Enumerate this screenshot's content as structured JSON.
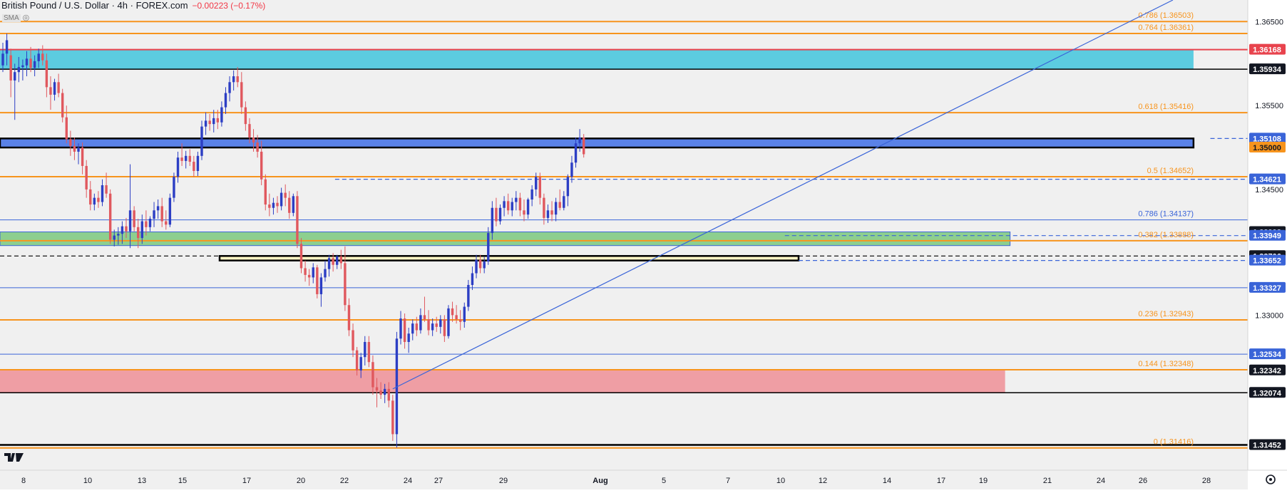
{
  "header": {
    "symbol": "British Pound / U.S. Dollar · 4h · FOREX.com",
    "change": "−0.00223 (−0.17%)",
    "sma_label": "SMA"
  },
  "colors": {
    "up": "#2c3ec4",
    "down": "#e0585e",
    "orange": "#f7941d",
    "blue_line": "#3a64d8",
    "black": "#000000",
    "red_line": "#e8434d",
    "cyan_zone": "#5ccce0",
    "blue_zone": "#5a82e8",
    "green_zone": "#8dcf8f",
    "red_zone": "#ef9ea4",
    "yellow_zone": "#fff6c4"
  },
  "chart_data": {
    "type": "candlestick",
    "title": "British Pound / U.S. Dollar · 4h · FOREX.com",
    "ylim": [
      1.3115,
      1.3676
    ],
    "x_ticks": [
      "8",
      "10",
      "13",
      "15",
      "17",
      "20",
      "22",
      "24",
      "27",
      "29",
      "Aug",
      "5",
      "7",
      "10",
      "12",
      "14",
      "17",
      "19",
      "21",
      "24",
      "26",
      "28"
    ],
    "price_labels": [
      {
        "text": "1.36168",
        "value": 1.36168,
        "style": "red"
      },
      {
        "text": "1.35934",
        "value": 1.35934,
        "style": "black"
      },
      {
        "text": "1.35108",
        "value": 1.35108,
        "style": "blue"
      },
      {
        "text": "1.35000",
        "value": 1.35,
        "style": "orange"
      },
      {
        "text": "1.34621",
        "value": 1.34621,
        "style": "blue"
      },
      {
        "text": "1.33993",
        "value": 1.33993,
        "style": "black"
      },
      {
        "text": "1.33949",
        "value": 1.33949,
        "style": "blue"
      },
      {
        "text": "1.33706",
        "value": 1.33706,
        "style": "black"
      },
      {
        "text": "1.33652",
        "value": 1.33652,
        "style": "blue"
      },
      {
        "text": "1.33327",
        "value": 1.33327,
        "style": "blue"
      },
      {
        "text": "1.32534",
        "value": 1.32534,
        "style": "blue"
      },
      {
        "text": "1.32342",
        "value": 1.32342,
        "style": "black"
      },
      {
        "text": "1.32074",
        "value": 1.32074,
        "style": "black"
      },
      {
        "text": "1.31452",
        "value": 1.31452,
        "style": "black"
      }
    ],
    "axis_ticks": [
      {
        "text": "1.36500",
        "value": 1.365
      },
      {
        "text": "1.35500",
        "value": 1.355
      },
      {
        "text": "1.34500",
        "value": 1.345
      },
      {
        "text": "1.33000",
        "value": 1.33
      }
    ],
    "fib_levels": [
      {
        "text": "0.786 (1.36503)",
        "value": 1.36503
      },
      {
        "text": "0.764 (1.36361)",
        "value": 1.36361
      },
      {
        "text": "0.618 (1.35416)",
        "value": 1.35416
      },
      {
        "text": "0.5 (1.34652)",
        "value": 1.34652
      },
      {
        "text": "0.786 (1.34137)",
        "value": 1.34137,
        "color": "blue"
      },
      {
        "text": "0.382 (1.33888)",
        "value": 1.33888
      },
      {
        "text": "0.236 (1.32943)",
        "value": 1.32943
      },
      {
        "text": "0.144 (1.32348)",
        "value": 1.32348
      },
      {
        "text": "0 (1.31416)",
        "value": 1.31416
      }
    ],
    "zones": [
      {
        "name": "cyan",
        "y1": 1.36168,
        "y2": 1.35934,
        "x_end": 0.9565
      },
      {
        "name": "blue",
        "y1": 1.35108,
        "y2": 1.35,
        "x_end": 0.9565
      },
      {
        "name": "green",
        "y1": 1.33993,
        "y2": 1.3383,
        "x_end": 0.8095
      },
      {
        "name": "yellow",
        "y1": 1.33706,
        "y2": 1.33652,
        "x_start": 0.176,
        "x_end": 0.64
      },
      {
        "name": "red",
        "y1": 1.32342,
        "y2": 1.32074,
        "x_end": 0.8055
      }
    ],
    "candles": [
      [
        1.3598,
        1.3625,
        1.359,
        1.3612
      ],
      [
        1.3612,
        1.3636,
        1.3598,
        1.3628
      ],
      [
        1.361,
        1.3618,
        1.356,
        1.358
      ],
      [
        1.358,
        1.36,
        1.3533,
        1.359
      ],
      [
        1.359,
        1.3608,
        1.3578,
        1.3596
      ],
      [
        1.3596,
        1.3605,
        1.358,
        1.3598
      ],
      [
        1.3598,
        1.3615,
        1.3585,
        1.3606
      ],
      [
        1.3606,
        1.362,
        1.359,
        1.3595
      ],
      [
        1.3595,
        1.361,
        1.3585,
        1.3603
      ],
      [
        1.3603,
        1.3618,
        1.3595,
        1.3612
      ],
      [
        1.3612,
        1.3622,
        1.3598,
        1.3604
      ],
      [
        1.3604,
        1.3612,
        1.356,
        1.3572
      ],
      [
        1.3572,
        1.3585,
        1.3545,
        1.3563
      ],
      [
        1.3563,
        1.3582,
        1.3556,
        1.3578
      ],
      [
        1.3578,
        1.3588,
        1.356,
        1.3565
      ],
      [
        1.3565,
        1.357,
        1.353,
        1.3536
      ],
      [
        1.3536,
        1.355,
        1.3505,
        1.351
      ],
      [
        1.351,
        1.352,
        1.349,
        1.3502
      ],
      [
        1.3502,
        1.3512,
        1.3485,
        1.3495
      ],
      [
        1.3495,
        1.3505,
        1.348,
        1.35
      ],
      [
        1.35,
        1.3506,
        1.3468,
        1.3478
      ],
      [
        1.3478,
        1.3485,
        1.344,
        1.345
      ],
      [
        1.345,
        1.346,
        1.3425,
        1.3432
      ],
      [
        1.3432,
        1.3445,
        1.3425,
        1.344
      ],
      [
        1.344,
        1.3448,
        1.3428,
        1.3435
      ],
      [
        1.3435,
        1.3462,
        1.343,
        1.3455
      ],
      [
        1.3455,
        1.347,
        1.344,
        1.3445
      ],
      [
        1.3445,
        1.345,
        1.3385,
        1.339
      ],
      [
        1.339,
        1.3402,
        1.3382,
        1.3395
      ],
      [
        1.3395,
        1.3405,
        1.3384,
        1.3397
      ],
      [
        1.3397,
        1.3412,
        1.3385,
        1.3406
      ],
      [
        1.3406,
        1.3416,
        1.3392,
        1.34
      ],
      [
        1.34,
        1.348,
        1.338,
        1.3425
      ],
      [
        1.3425,
        1.343,
        1.34,
        1.3405
      ],
      [
        1.3405,
        1.3415,
        1.338,
        1.3392
      ],
      [
        1.3392,
        1.342,
        1.3385,
        1.3412
      ],
      [
        1.3412,
        1.3425,
        1.3395,
        1.3405
      ],
      [
        1.3405,
        1.3418,
        1.34,
        1.3415
      ],
      [
        1.3415,
        1.3435,
        1.3405,
        1.3425
      ],
      [
        1.3425,
        1.3438,
        1.3415,
        1.343
      ],
      [
        1.343,
        1.344,
        1.3405,
        1.3412
      ],
      [
        1.3412,
        1.3425,
        1.3402,
        1.3408
      ],
      [
        1.3408,
        1.3445,
        1.3405,
        1.344
      ],
      [
        1.344,
        1.347,
        1.3435,
        1.3465
      ],
      [
        1.3465,
        1.3495,
        1.3458,
        1.3488
      ],
      [
        1.3488,
        1.3505,
        1.3478,
        1.3484
      ],
      [
        1.3484,
        1.3496,
        1.3475,
        1.349
      ],
      [
        1.349,
        1.3498,
        1.3478,
        1.3483
      ],
      [
        1.3483,
        1.349,
        1.3465,
        1.3472
      ],
      [
        1.3472,
        1.3495,
        1.3466,
        1.349
      ],
      [
        1.349,
        1.3532,
        1.3485,
        1.3525
      ],
      [
        1.3525,
        1.3542,
        1.3515,
        1.3532
      ],
      [
        1.3532,
        1.354,
        1.352,
        1.3528
      ],
      [
        1.3528,
        1.3545,
        1.3518,
        1.3535
      ],
      [
        1.3535,
        1.3545,
        1.3522,
        1.353
      ],
      [
        1.353,
        1.3555,
        1.3525,
        1.3548
      ],
      [
        1.3548,
        1.3572,
        1.354,
        1.3565
      ],
      [
        1.3565,
        1.3585,
        1.3555,
        1.3578
      ],
      [
        1.3578,
        1.3592,
        1.3568,
        1.3585
      ],
      [
        1.3585,
        1.3596,
        1.3572,
        1.3578
      ],
      [
        1.3578,
        1.359,
        1.354,
        1.3548
      ],
      [
        1.3548,
        1.3555,
        1.352,
        1.3528
      ],
      [
        1.3528,
        1.3535,
        1.3505,
        1.3512
      ],
      [
        1.3512,
        1.3522,
        1.3495,
        1.3506
      ],
      [
        1.3506,
        1.3515,
        1.3488,
        1.3495
      ],
      [
        1.3495,
        1.3508,
        1.3455,
        1.3462
      ],
      [
        1.3462,
        1.3468,
        1.3425,
        1.3432
      ],
      [
        1.3432,
        1.3445,
        1.3418,
        1.3428
      ],
      [
        1.3428,
        1.344,
        1.342,
        1.3434
      ],
      [
        1.3434,
        1.3442,
        1.3422,
        1.343
      ],
      [
        1.343,
        1.3452,
        1.3425,
        1.3446
      ],
      [
        1.3446,
        1.3456,
        1.343,
        1.344
      ],
      [
        1.344,
        1.3448,
        1.3415,
        1.3422
      ],
      [
        1.3422,
        1.3445,
        1.3418,
        1.3442
      ],
      [
        1.3442,
        1.3448,
        1.338,
        1.3385
      ],
      [
        1.3385,
        1.3392,
        1.335,
        1.3356
      ],
      [
        1.3356,
        1.3365,
        1.334,
        1.3348
      ],
      [
        1.3348,
        1.3355,
        1.3335,
        1.3345
      ],
      [
        1.3345,
        1.3362,
        1.3338,
        1.3357
      ],
      [
        1.3357,
        1.336,
        1.332,
        1.3325
      ],
      [
        1.3325,
        1.335,
        1.331,
        1.3345
      ],
      [
        1.3345,
        1.3365,
        1.334,
        1.3355
      ],
      [
        1.3355,
        1.3372,
        1.3346,
        1.3368
      ],
      [
        1.3368,
        1.3374,
        1.3352,
        1.336
      ],
      [
        1.336,
        1.3372,
        1.3355,
        1.337
      ],
      [
        1.337,
        1.3378,
        1.3355,
        1.3362
      ],
      [
        1.3362,
        1.3382,
        1.3305,
        1.3312
      ],
      [
        1.3312,
        1.332,
        1.3275,
        1.3282
      ],
      [
        1.3282,
        1.329,
        1.325,
        1.3258
      ],
      [
        1.3258,
        1.3262,
        1.3228,
        1.3234
      ],
      [
        1.3234,
        1.3255,
        1.3225,
        1.325
      ],
      [
        1.325,
        1.3275,
        1.324,
        1.3268
      ],
      [
        1.3268,
        1.3275,
        1.3238,
        1.3244
      ],
      [
        1.3244,
        1.3252,
        1.3205,
        1.3214
      ],
      [
        1.3214,
        1.3225,
        1.319,
        1.321
      ],
      [
        1.321,
        1.322,
        1.32,
        1.3205
      ],
      [
        1.3205,
        1.3218,
        1.3195,
        1.3212
      ],
      [
        1.3212,
        1.322,
        1.319,
        1.3198
      ],
      [
        1.3198,
        1.3205,
        1.315,
        1.3158
      ],
      [
        1.3158,
        1.328,
        1.3142,
        1.3272
      ],
      [
        1.3272,
        1.3305,
        1.3265,
        1.3296
      ],
      [
        1.3296,
        1.3302,
        1.326,
        1.3268
      ],
      [
        1.3268,
        1.3285,
        1.3255,
        1.3278
      ],
      [
        1.3278,
        1.3295,
        1.327,
        1.329
      ],
      [
        1.329,
        1.3298,
        1.3275,
        1.3282
      ],
      [
        1.3282,
        1.3308,
        1.3278,
        1.33
      ],
      [
        1.33,
        1.3322,
        1.3292,
        1.3295
      ],
      [
        1.3295,
        1.3306,
        1.3276,
        1.3282
      ],
      [
        1.3282,
        1.3296,
        1.3275,
        1.329
      ],
      [
        1.329,
        1.3298,
        1.328,
        1.3286
      ],
      [
        1.3286,
        1.33,
        1.3278,
        1.3295
      ],
      [
        1.3295,
        1.33,
        1.3268,
        1.3275
      ],
      [
        1.3275,
        1.3312,
        1.3272,
        1.3308
      ],
      [
        1.3308,
        1.3316,
        1.3292,
        1.33
      ],
      [
        1.33,
        1.3312,
        1.329,
        1.3295
      ],
      [
        1.3295,
        1.3306,
        1.3282,
        1.3292
      ],
      [
        1.3292,
        1.3315,
        1.3285,
        1.331
      ],
      [
        1.331,
        1.3342,
        1.3305,
        1.3336
      ],
      [
        1.3336,
        1.3358,
        1.333,
        1.335
      ],
      [
        1.335,
        1.3372,
        1.3344,
        1.3366
      ],
      [
        1.3366,
        1.3372,
        1.335,
        1.3356
      ],
      [
        1.3356,
        1.337,
        1.335,
        1.3364
      ],
      [
        1.3364,
        1.3405,
        1.336,
        1.3398
      ],
      [
        1.3398,
        1.3436,
        1.339,
        1.3428
      ],
      [
        1.3428,
        1.344,
        1.3406,
        1.3412
      ],
      [
        1.3412,
        1.3432,
        1.3408,
        1.3428
      ],
      [
        1.3428,
        1.3442,
        1.3418,
        1.3436
      ],
      [
        1.3436,
        1.3445,
        1.342,
        1.3425
      ],
      [
        1.3425,
        1.344,
        1.3418,
        1.3435
      ],
      [
        1.3435,
        1.3448,
        1.3425,
        1.344
      ],
      [
        1.344,
        1.3446,
        1.3418,
        1.3425
      ],
      [
        1.3425,
        1.3438,
        1.3412,
        1.342
      ],
      [
        1.342,
        1.344,
        1.3415,
        1.3438
      ],
      [
        1.3438,
        1.3455,
        1.343,
        1.345
      ],
      [
        1.345,
        1.347,
        1.3442,
        1.3465
      ],
      [
        1.3465,
        1.347,
        1.3432,
        1.344
      ],
      [
        1.344,
        1.3445,
        1.3408,
        1.3416
      ],
      [
        1.3416,
        1.3432,
        1.341,
        1.3425
      ],
      [
        1.3425,
        1.3436,
        1.3412,
        1.342
      ],
      [
        1.342,
        1.344,
        1.3412,
        1.3435
      ],
      [
        1.3435,
        1.345,
        1.3425,
        1.3428
      ],
      [
        1.3428,
        1.3448,
        1.3425,
        1.3442
      ],
      [
        1.3442,
        1.3468,
        1.343,
        1.3465
      ],
      [
        1.3465,
        1.349,
        1.3458,
        1.3482
      ],
      [
        1.3482,
        1.3512,
        1.3476,
        1.3505
      ],
      [
        1.3505,
        1.3522,
        1.3495,
        1.3512
      ],
      [
        1.3512,
        1.3516,
        1.3488,
        1.3492
      ]
    ]
  }
}
